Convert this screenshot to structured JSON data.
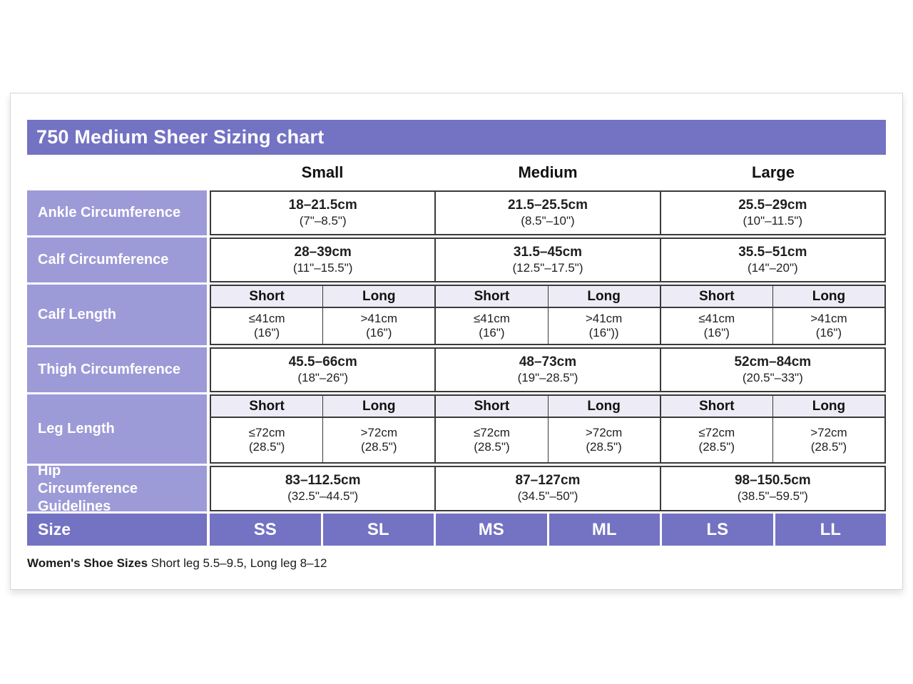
{
  "title": "750 Medium Sheer Sizing chart",
  "colors": {
    "header_purple": "#7372c3",
    "label_purple": "#9c9ad7",
    "subheader_lavender": "#edecf6",
    "grid_line": "#3a3a3a"
  },
  "size_groups": [
    "Small",
    "Medium",
    "Large"
  ],
  "rows": [
    {
      "label": "Ankle Circumference",
      "cells": [
        {
          "main": "18–21.5cm",
          "sub": "(7\"–8.5\")"
        },
        {
          "main": "21.5–25.5cm",
          "sub": "(8.5\"–10\")"
        },
        {
          "main": "25.5–29cm",
          "sub": "(10\"–11.5\")"
        }
      ]
    },
    {
      "label": "Calf Circumference",
      "cells": [
        {
          "main": "28–39cm",
          "sub": "(11\"–15.5\")"
        },
        {
          "main": "31.5–45cm",
          "sub": "(12.5\"–17.5\")"
        },
        {
          "main": "35.5–51cm",
          "sub": "(14\"–20\")"
        }
      ]
    },
    {
      "label": "Calf Length",
      "subheaders": [
        "Short",
        "Long",
        "Short",
        "Long",
        "Short",
        "Long"
      ],
      "cells": [
        {
          "main": "≤41cm",
          "sub": "(16\")"
        },
        {
          "main": ">41cm",
          "sub": "(16\")"
        },
        {
          "main": "≤41cm",
          "sub": "(16\")"
        },
        {
          "main": ">41cm",
          "sub": "(16\"))"
        },
        {
          "main": "≤41cm",
          "sub": "(16\")"
        },
        {
          "main": ">41cm",
          "sub": "(16\")"
        }
      ]
    },
    {
      "label": "Thigh Circumference",
      "cells": [
        {
          "main": "45.5–66cm",
          "sub": "(18\"–26\")"
        },
        {
          "main": "48–73cm",
          "sub": "(19\"–28.5\")"
        },
        {
          "main": "52cm–84cm",
          "sub": "(20.5\"–33\")"
        }
      ]
    },
    {
      "label": "Leg Length",
      "subheaders": [
        "Short",
        "Long",
        "Short",
        "Long",
        "Short",
        "Long"
      ],
      "cells": [
        {
          "main": "≤72cm",
          "sub": "(28.5\")"
        },
        {
          "main": ">72cm",
          "sub": "(28.5\")"
        },
        {
          "main": "≤72cm",
          "sub": "(28.5\")"
        },
        {
          "main": ">72cm",
          "sub": "(28.5\")"
        },
        {
          "main": "≤72cm",
          "sub": "(28.5\")"
        },
        {
          "main": ">72cm",
          "sub": "(28.5\")"
        }
      ]
    },
    {
      "label": "Hip Circumference Guidelines",
      "cells": [
        {
          "main": "83–112.5cm",
          "sub": "(32.5\"–44.5\")"
        },
        {
          "main": "87–127cm",
          "sub": "(34.5\"–50\")"
        },
        {
          "main": "98–150.5cm",
          "sub": "(38.5\"–59.5\")"
        }
      ]
    }
  ],
  "size_row": {
    "label": "Size",
    "values": [
      "SS",
      "SL",
      "MS",
      "ML",
      "LS",
      "LL"
    ]
  },
  "footer": {
    "bold": "Women's Shoe Sizes",
    "rest": " Short leg 5.5–9.5, Long leg 8–12"
  }
}
